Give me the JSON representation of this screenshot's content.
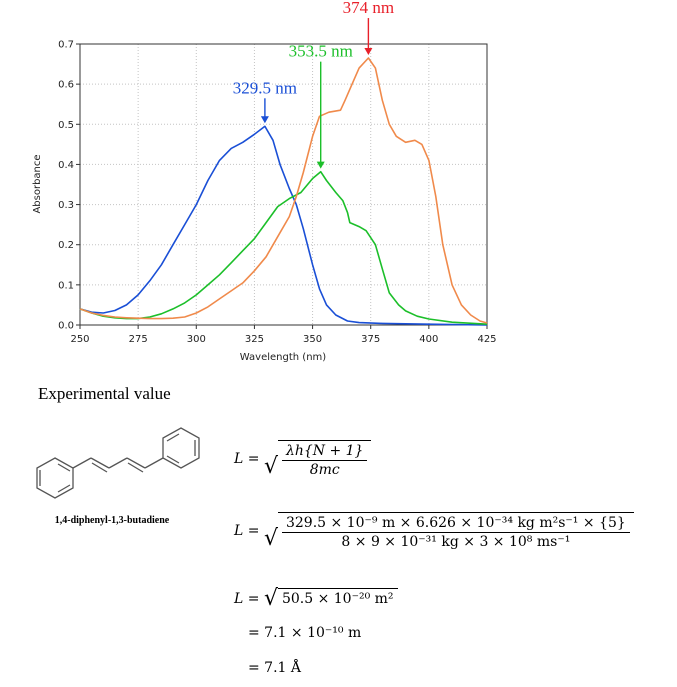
{
  "chart_data": {
    "type": "line",
    "xlabel": "Wavelength (nm)",
    "ylabel": "Absorbance",
    "xlim": [
      250,
      425
    ],
    "ylim": [
      0,
      0.7
    ],
    "x_ticks": [
      "250",
      "275",
      "300",
      "325",
      "350",
      "375",
      "400",
      "425"
    ],
    "y_ticks": [
      "0.0",
      "0.1",
      "0.2",
      "0.3",
      "0.4",
      "0.5",
      "0.6",
      "0.7"
    ],
    "grid": true,
    "series": [
      {
        "color": "#1a4fd6",
        "points": [
          [
            250,
            0.04
          ],
          [
            255,
            0.032
          ],
          [
            260,
            0.03
          ],
          [
            265,
            0.036
          ],
          [
            270,
            0.05
          ],
          [
            275,
            0.075
          ],
          [
            280,
            0.11
          ],
          [
            285,
            0.15
          ],
          [
            290,
            0.2
          ],
          [
            295,
            0.25
          ],
          [
            300,
            0.3
          ],
          [
            305,
            0.36
          ],
          [
            310,
            0.41
          ],
          [
            315,
            0.44
          ],
          [
            320,
            0.455
          ],
          [
            325,
            0.475
          ],
          [
            329.5,
            0.495
          ],
          [
            333,
            0.46
          ],
          [
            336,
            0.4
          ],
          [
            340,
            0.34
          ],
          [
            343,
            0.3
          ],
          [
            346,
            0.24
          ],
          [
            350,
            0.15
          ],
          [
            353,
            0.09
          ],
          [
            356,
            0.05
          ],
          [
            360,
            0.025
          ],
          [
            365,
            0.01
          ],
          [
            370,
            0.006
          ],
          [
            380,
            0.004
          ],
          [
            400,
            0.002
          ],
          [
            425,
            0.0
          ]
        ]
      },
      {
        "color": "#1cbf2a",
        "points": [
          [
            250,
            0.04
          ],
          [
            255,
            0.03
          ],
          [
            260,
            0.022
          ],
          [
            265,
            0.018
          ],
          [
            270,
            0.016
          ],
          [
            275,
            0.016
          ],
          [
            280,
            0.02
          ],
          [
            285,
            0.028
          ],
          [
            290,
            0.04
          ],
          [
            295,
            0.055
          ],
          [
            300,
            0.075
          ],
          [
            305,
            0.1
          ],
          [
            310,
            0.125
          ],
          [
            315,
            0.155
          ],
          [
            320,
            0.185
          ],
          [
            325,
            0.215
          ],
          [
            330,
            0.255
          ],
          [
            335,
            0.295
          ],
          [
            340,
            0.315
          ],
          [
            345,
            0.33
          ],
          [
            350,
            0.365
          ],
          [
            353.5,
            0.382
          ],
          [
            356,
            0.36
          ],
          [
            360,
            0.33
          ],
          [
            363,
            0.31
          ],
          [
            365,
            0.28
          ],
          [
            366,
            0.255
          ],
          [
            370,
            0.245
          ],
          [
            373,
            0.235
          ],
          [
            377,
            0.2
          ],
          [
            380,
            0.14
          ],
          [
            383,
            0.08
          ],
          [
            387,
            0.05
          ],
          [
            390,
            0.035
          ],
          [
            395,
            0.022
          ],
          [
            400,
            0.015
          ],
          [
            410,
            0.007
          ],
          [
            425,
            0.002
          ]
        ]
      },
      {
        "color": "#f08a4b",
        "points": [
          [
            250,
            0.04
          ],
          [
            255,
            0.03
          ],
          [
            260,
            0.024
          ],
          [
            265,
            0.02
          ],
          [
            270,
            0.018
          ],
          [
            275,
            0.017
          ],
          [
            280,
            0.016
          ],
          [
            285,
            0.016
          ],
          [
            290,
            0.017
          ],
          [
            295,
            0.02
          ],
          [
            300,
            0.03
          ],
          [
            305,
            0.045
          ],
          [
            310,
            0.065
          ],
          [
            315,
            0.085
          ],
          [
            320,
            0.105
          ],
          [
            325,
            0.135
          ],
          [
            330,
            0.17
          ],
          [
            335,
            0.22
          ],
          [
            340,
            0.27
          ],
          [
            343,
            0.32
          ],
          [
            346,
            0.38
          ],
          [
            350,
            0.47
          ],
          [
            353,
            0.52
          ],
          [
            357,
            0.53
          ],
          [
            362,
            0.535
          ],
          [
            364,
            0.56
          ],
          [
            367,
            0.6
          ],
          [
            370,
            0.64
          ],
          [
            374,
            0.665
          ],
          [
            377,
            0.64
          ],
          [
            380,
            0.56
          ],
          [
            383,
            0.5
          ],
          [
            386,
            0.47
          ],
          [
            390,
            0.455
          ],
          [
            394,
            0.46
          ],
          [
            397,
            0.45
          ],
          [
            400,
            0.41
          ],
          [
            403,
            0.32
          ],
          [
            406,
            0.2
          ],
          [
            410,
            0.1
          ],
          [
            414,
            0.05
          ],
          [
            418,
            0.025
          ],
          [
            422,
            0.01
          ],
          [
            425,
            0.005
          ]
        ]
      }
    ],
    "annotations": [
      {
        "text": "329.5 nm",
        "x": 329.5,
        "y": 0.495,
        "color": "#1a4fd6"
      },
      {
        "text": "353.5 nm",
        "x": 353.5,
        "y": 0.382,
        "color": "#1cbf2a"
      },
      {
        "text": "374 nm",
        "x": 374,
        "y": 0.665,
        "color": "#e8202a"
      }
    ]
  },
  "section_title": "Experimental value",
  "molecule_name": "1,4-diphenyl-1,3-butadiene",
  "eq1": {
    "lhs": "L =",
    "num": "λh{N + 1}",
    "den": "8mc"
  },
  "eq2": {
    "lhs": "L =",
    "num": "329.5 × 10⁻⁹ m  ×  6.626 × 10⁻³⁴ kg m²s⁻¹  ×  {5}",
    "den": "8  ×  9 × 10⁻³¹ kg  ×  3 × 10⁸ ms⁻¹"
  },
  "eq3": {
    "lhs": "L =",
    "body": "50.5 × 10⁻²⁰ m²"
  },
  "eq4": "= 7.1 × 10⁻¹⁰  m",
  "eq5": "= 7.1 Å"
}
